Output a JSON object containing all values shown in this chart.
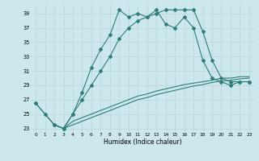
{
  "title": "",
  "xlabel": "Humidex (Indice chaleur)",
  "background_color": "#cce8ec",
  "grid_color": "#b8d4d8",
  "line_color": "#2e7d7a",
  "xlim": [
    -0.5,
    23.5
  ],
  "ylim": [
    22.5,
    40.2
  ],
  "xticks": [
    0,
    1,
    2,
    3,
    4,
    5,
    6,
    7,
    8,
    9,
    10,
    11,
    12,
    13,
    14,
    15,
    16,
    17,
    18,
    19,
    20,
    21,
    22,
    23
  ],
  "yticks": [
    23,
    25,
    27,
    29,
    31,
    33,
    35,
    37,
    39
  ],
  "s1_x": [
    0,
    1,
    2,
    3,
    4,
    5,
    6,
    7,
    8,
    9,
    10,
    11,
    12,
    13,
    14,
    15,
    16,
    17,
    18,
    19,
    20,
    21,
    22,
    23
  ],
  "s1_y": [
    26.5,
    25.0,
    23.5,
    23.0,
    25.0,
    28.0,
    31.5,
    34.0,
    36.0,
    39.5,
    38.5,
    39.0,
    38.5,
    39.5,
    37.5,
    37.0,
    38.5,
    37.0,
    32.5,
    30.0,
    29.5,
    29.0,
    29.5,
    29.5
  ],
  "s2_x": [
    0,
    2,
    3,
    4,
    5,
    6,
    7,
    8,
    9,
    10,
    11,
    12,
    13,
    14,
    15,
    16,
    17,
    18,
    19,
    20,
    21,
    22,
    23
  ],
  "s2_y": [
    26.5,
    23.5,
    23.0,
    25.0,
    27.0,
    29.0,
    31.0,
    33.0,
    35.5,
    37.0,
    38.0,
    38.5,
    39.0,
    39.5,
    39.5,
    39.5,
    39.5,
    36.5,
    32.5,
    30.0,
    29.5,
    29.5,
    29.5
  ],
  "s3_x": [
    2,
    3,
    4,
    5,
    6,
    7,
    8,
    9,
    10,
    11,
    12,
    13,
    14,
    15,
    16,
    17,
    18,
    19,
    20,
    21,
    22,
    23
  ],
  "s3_y": [
    23.5,
    23.0,
    24.0,
    24.5,
    25.0,
    25.5,
    26.0,
    26.5,
    27.0,
    27.5,
    27.8,
    28.2,
    28.5,
    28.8,
    29.1,
    29.3,
    29.5,
    29.7,
    30.0,
    30.0,
    30.2,
    30.2
  ],
  "s4_x": [
    2,
    3,
    4,
    5,
    6,
    7,
    8,
    9,
    10,
    11,
    12,
    13,
    14,
    15,
    16,
    17,
    18,
    19,
    20,
    21,
    22,
    23
  ],
  "s4_y": [
    23.5,
    23.0,
    23.5,
    24.0,
    24.5,
    25.0,
    25.5,
    26.0,
    26.5,
    27.0,
    27.3,
    27.7,
    28.0,
    28.3,
    28.6,
    28.9,
    29.1,
    29.4,
    29.6,
    29.7,
    29.9,
    30.0
  ]
}
